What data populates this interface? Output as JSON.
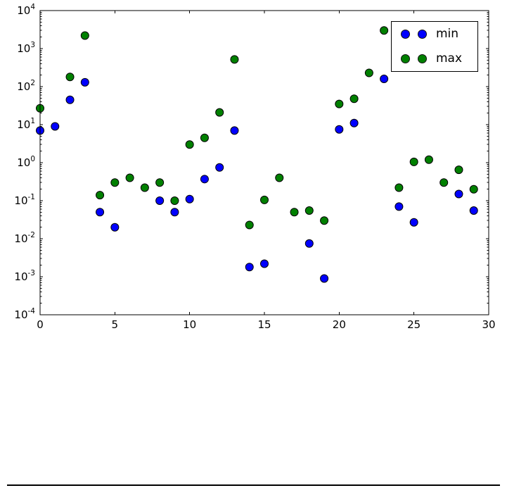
{
  "chart_data": {
    "type": "scatter",
    "title": "",
    "xlabel": "",
    "ylabel": "",
    "yscale": "log",
    "xlim": [
      0,
      30
    ],
    "ylim": [
      0.0001,
      10000
    ],
    "ylim_exponents": [
      -4,
      4
    ],
    "xticks": [
      0,
      5,
      10,
      15,
      20,
      25,
      30
    ],
    "ytick_exponents": [
      4,
      3,
      2,
      1,
      0,
      -1,
      -2,
      -3,
      -4
    ],
    "grid": false,
    "legend_position": "upper right",
    "frame_color": "#000000",
    "background_color": "#ffffff",
    "series": [
      {
        "name": "min",
        "color": "#0000ff",
        "edge_color": "#000000",
        "points": [
          [
            0,
            7
          ],
          [
            1,
            9
          ],
          [
            2,
            45
          ],
          [
            3,
            130
          ],
          [
            4,
            0.05
          ],
          [
            5,
            0.02
          ],
          [
            8,
            0.1
          ],
          [
            9,
            0.05
          ],
          [
            10,
            0.11
          ],
          [
            11,
            0.37
          ],
          [
            12,
            0.75
          ],
          [
            13,
            7
          ],
          [
            14,
            0.0018
          ],
          [
            15,
            0.0022
          ],
          [
            18,
            0.0075
          ],
          [
            19,
            0.0009
          ],
          [
            20,
            7.5
          ],
          [
            21,
            11
          ],
          [
            23,
            160
          ],
          [
            24,
            0.07
          ],
          [
            25,
            0.027
          ],
          [
            28,
            0.15
          ],
          [
            29,
            0.055
          ]
        ]
      },
      {
        "name": "max",
        "color": "#008000",
        "edge_color": "#000000",
        "points": [
          [
            0,
            27
          ],
          [
            2,
            180
          ],
          [
            3,
            2200
          ],
          [
            4,
            0.14
          ],
          [
            5,
            0.3
          ],
          [
            6,
            0.4
          ],
          [
            7,
            0.22
          ],
          [
            8,
            0.3
          ],
          [
            9,
            0.1
          ],
          [
            10,
            3
          ],
          [
            11,
            4.5
          ],
          [
            12,
            21
          ],
          [
            13,
            520
          ],
          [
            14,
            0.023
          ],
          [
            15,
            0.105
          ],
          [
            16,
            0.4
          ],
          [
            17,
            0.05
          ],
          [
            18,
            0.055
          ],
          [
            19,
            0.03
          ],
          [
            20,
            35
          ],
          [
            21,
            48
          ],
          [
            22,
            230
          ],
          [
            23,
            3000
          ],
          [
            24,
            0.22
          ],
          [
            25,
            1.05
          ],
          [
            26,
            1.2
          ],
          [
            27,
            0.3
          ],
          [
            28,
            0.65
          ],
          [
            29,
            0.2
          ]
        ]
      }
    ]
  },
  "footer": {
    "divider": true
  }
}
